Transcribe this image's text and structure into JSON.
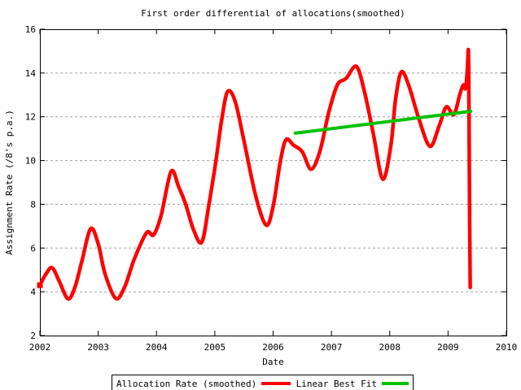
{
  "page": {
    "background": "#ffffff",
    "text_color": "#000000"
  },
  "chart_data": {
    "type": "line",
    "title": "First order differential of allocations(smoothed)",
    "xlabel": "Date",
    "ylabel": "Assignment Rate (/8's p.a.)",
    "xlim": [
      2002,
      2010
    ],
    "ylim": [
      2,
      16
    ],
    "x_ticks": [
      2002,
      2003,
      2004,
      2005,
      2006,
      2007,
      2008,
      2009,
      2010
    ],
    "y_ticks": [
      2,
      4,
      6,
      8,
      10,
      12,
      14,
      16
    ],
    "grid": {
      "horizontal_at": [
        4,
        6,
        8,
        10,
        12,
        14
      ],
      "vertical": false,
      "style": "dashed",
      "color": "#a0a0a0"
    },
    "legend": {
      "position": "bottom-outside",
      "boxed": true
    },
    "series": [
      {
        "name": "Allocation Rate (smoothed)",
        "color": "#ff0000",
        "width": 4.5,
        "smooth": true,
        "start_marker": true,
        "points": [
          [
            2002.0,
            4.3
          ],
          [
            2002.1,
            4.8
          ],
          [
            2002.21,
            5.1
          ],
          [
            2002.33,
            4.5
          ],
          [
            2002.48,
            3.68
          ],
          [
            2002.6,
            4.2
          ],
          [
            2002.72,
            5.4
          ],
          [
            2002.87,
            6.88
          ],
          [
            2003.0,
            6.2
          ],
          [
            2003.12,
            4.8
          ],
          [
            2003.3,
            3.7
          ],
          [
            2003.45,
            4.2
          ],
          [
            2003.62,
            5.5
          ],
          [
            2003.83,
            6.7
          ],
          [
            2003.95,
            6.6
          ],
          [
            2004.08,
            7.5
          ],
          [
            2004.25,
            9.5
          ],
          [
            2004.38,
            8.8
          ],
          [
            2004.5,
            8.0
          ],
          [
            2004.64,
            6.8
          ],
          [
            2004.78,
            6.28
          ],
          [
            2004.9,
            8.0
          ],
          [
            2005.02,
            10.0
          ],
          [
            2005.12,
            11.9
          ],
          [
            2005.22,
            13.15
          ],
          [
            2005.35,
            12.7
          ],
          [
            2005.5,
            10.9
          ],
          [
            2005.7,
            8.4
          ],
          [
            2005.88,
            7.05
          ],
          [
            2006.0,
            7.9
          ],
          [
            2006.12,
            9.9
          ],
          [
            2006.22,
            10.95
          ],
          [
            2006.35,
            10.7
          ],
          [
            2006.5,
            10.4
          ],
          [
            2006.65,
            9.6
          ],
          [
            2006.8,
            10.4
          ],
          [
            2006.95,
            12.15
          ],
          [
            2007.1,
            13.45
          ],
          [
            2007.25,
            13.75
          ],
          [
            2007.43,
            14.3
          ],
          [
            2007.57,
            13.1
          ],
          [
            2007.72,
            11.2
          ],
          [
            2007.88,
            9.15
          ],
          [
            2008.02,
            10.7
          ],
          [
            2008.1,
            12.8
          ],
          [
            2008.2,
            14.05
          ],
          [
            2008.33,
            13.4
          ],
          [
            2008.5,
            11.9
          ],
          [
            2008.69,
            10.65
          ],
          [
            2008.85,
            11.6
          ],
          [
            2008.97,
            12.45
          ],
          [
            2009.1,
            12.1
          ],
          [
            2009.2,
            13.0
          ],
          [
            2009.26,
            13.45
          ],
          [
            2009.3,
            13.3
          ],
          [
            2009.33,
            14.1
          ],
          [
            2009.35,
            15.0
          ],
          [
            2009.36,
            12.0
          ],
          [
            2009.37,
            7.5
          ],
          [
            2009.38,
            4.2
          ]
        ]
      },
      {
        "name": "Linear Best Fit",
        "color": "#00c000",
        "width": 4,
        "smooth": false,
        "start_marker": false,
        "points": [
          [
            2006.38,
            11.25
          ],
          [
            2009.39,
            12.25
          ]
        ]
      }
    ]
  }
}
